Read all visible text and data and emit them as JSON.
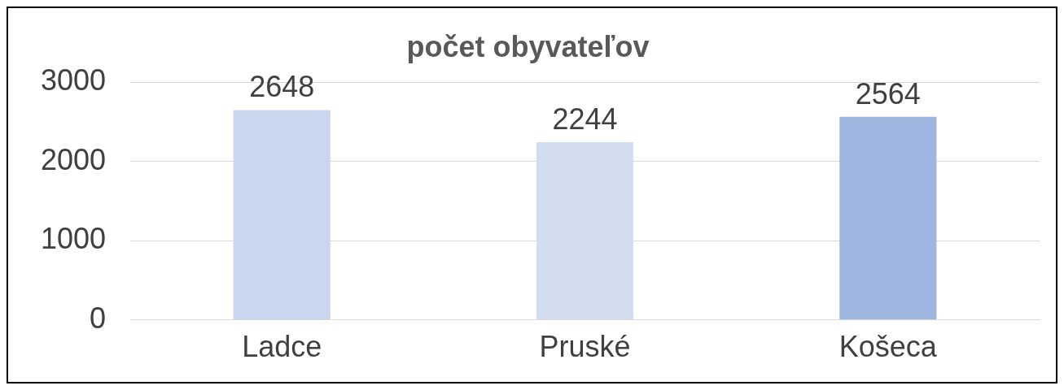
{
  "chart_data": {
    "type": "bar",
    "title": "počet obyvateľov",
    "categories": [
      "Ladce",
      "Pruské",
      "Košeca"
    ],
    "values": [
      2648,
      2244,
      2564
    ],
    "colors": [
      "#c9d6ee",
      "#d3ddf0",
      "#9fb6e0"
    ],
    "ylim": [
      0,
      3000
    ],
    "yticks": [
      0,
      1000,
      2000,
      3000
    ],
    "grid": "y",
    "data_labels": true,
    "legend": false
  }
}
